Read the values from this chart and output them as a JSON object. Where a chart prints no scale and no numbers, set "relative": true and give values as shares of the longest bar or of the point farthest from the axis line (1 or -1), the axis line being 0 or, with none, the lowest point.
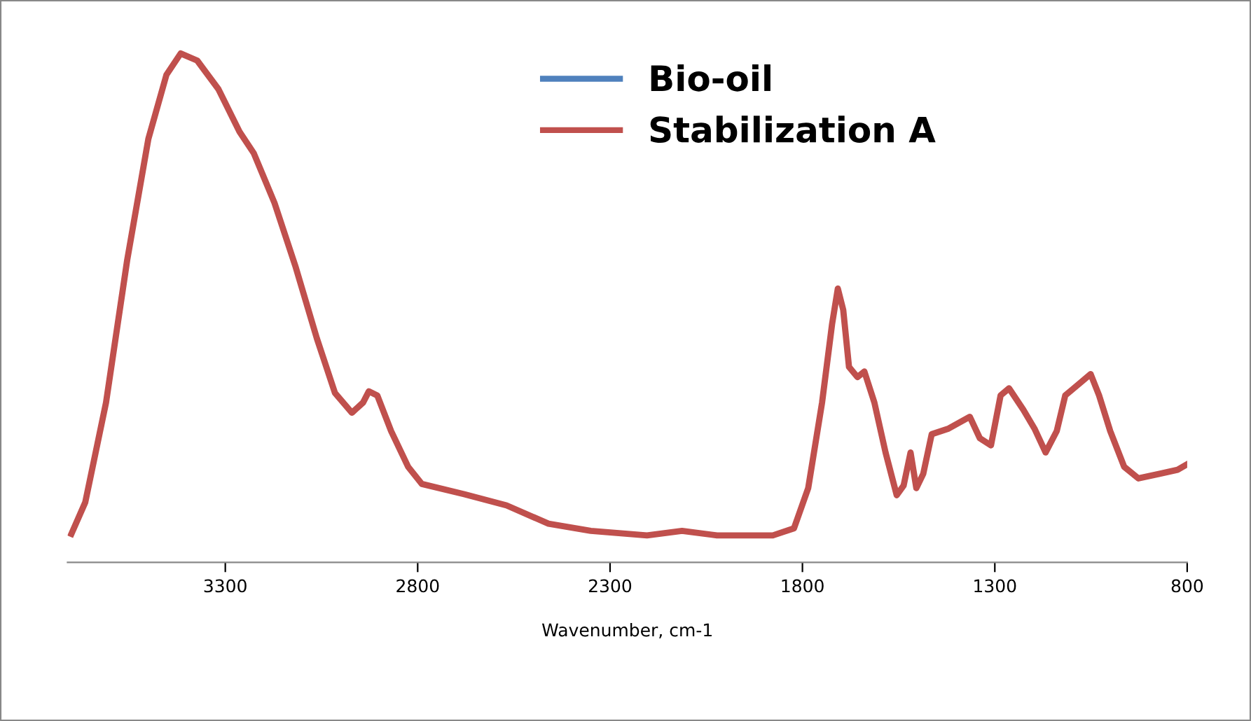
{
  "chart_data": {
    "type": "line",
    "relative": true,
    "xlabel": "Wavenumber, cm-1",
    "xlim": [
      3710,
      800
    ],
    "xticks": [
      3300,
      2800,
      2300,
      1800,
      1300,
      800
    ],
    "grid": false,
    "legend": "top",
    "tick_labels": "x",
    "x": [
      3700,
      3664,
      3610,
      3555,
      3500,
      3453,
      3416,
      3373,
      3318,
      3263,
      3226,
      3172,
      3117,
      3062,
      3015,
      2971,
      2942,
      2927,
      2905,
      2869,
      2825,
      2789,
      2679,
      2569,
      2460,
      2350,
      2204,
      2113,
      2022,
      1877,
      1822,
      1785,
      1749,
      1723,
      1708,
      1694,
      1679,
      1657,
      1639,
      1613,
      1584,
      1555,
      1537,
      1519,
      1504,
      1486,
      1464,
      1420,
      1365,
      1339,
      1310,
      1285,
      1263,
      1226,
      1197,
      1168,
      1139,
      1117,
      1073,
      1051,
      1029,
      1000,
      964,
      927,
      872,
      825,
      800
    ],
    "series": [
      {
        "name": "Bio-oil",
        "color": "#4f81bd",
        "values": [
          null,
          null,
          null,
          null,
          null,
          null,
          null,
          null,
          null,
          null,
          null,
          null,
          null,
          null,
          null,
          null,
          null,
          null,
          null,
          null,
          null,
          null,
          null,
          null,
          null,
          null,
          null,
          null,
          null,
          null,
          null,
          null,
          null,
          null,
          null,
          null,
          null,
          null,
          null,
          null,
          null,
          null,
          null,
          null,
          null,
          null,
          null,
          null,
          null,
          null,
          null,
          null,
          null,
          null,
          null,
          null,
          null,
          null,
          null,
          null,
          null,
          null,
          null,
          null,
          null,
          null,
          null
        ]
      },
      {
        "name": "Stabilization A",
        "color": "#c0504d",
        "values": [
          0.056,
          0.118,
          0.314,
          0.594,
          0.832,
          0.958,
          1.0,
          0.986,
          0.93,
          0.846,
          0.804,
          0.706,
          0.58,
          0.44,
          0.333,
          0.294,
          0.314,
          0.336,
          0.328,
          0.258,
          0.188,
          0.154,
          0.134,
          0.112,
          0.076,
          0.062,
          0.053,
          0.062,
          0.053,
          0.053,
          0.067,
          0.146,
          0.314,
          0.468,
          0.538,
          0.496,
          0.384,
          0.364,
          0.375,
          0.314,
          0.216,
          0.132,
          0.151,
          0.216,
          0.146,
          0.174,
          0.252,
          0.263,
          0.286,
          0.244,
          0.23,
          0.328,
          0.342,
          0.3,
          0.263,
          0.216,
          0.258,
          0.328,
          0.356,
          0.37,
          0.328,
          0.258,
          0.188,
          0.165,
          0.174,
          0.182,
          0.193
        ]
      }
    ]
  }
}
